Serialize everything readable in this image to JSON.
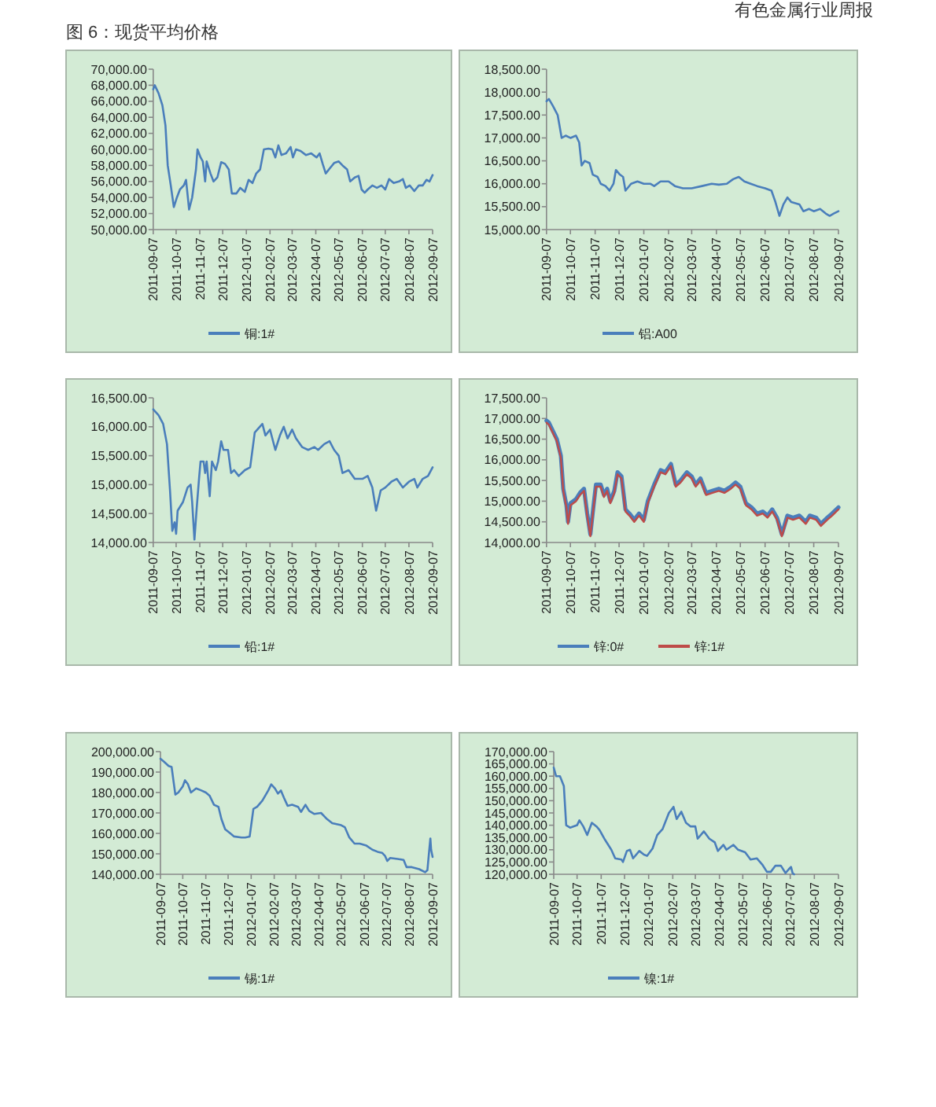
{
  "chart_data": [
    {
      "type": "line",
      "title": "图 6：现货平均价格",
      "annotations": [
        "有色金属行业周报"
      ],
      "legend": "bottom",
      "grid": false,
      "ylim": [
        50000,
        70000
      ],
      "yticks": [
        {
          "value": 50000,
          "label": "50,000.00"
        },
        {
          "value": 52000,
          "label": "52,000.00"
        },
        {
          "value": 54000,
          "label": "54,000.00"
        },
        {
          "value": 56000,
          "label": "56,000.00"
        },
        {
          "value": 58000,
          "label": "58,000.00"
        },
        {
          "value": 60000,
          "label": "60,000.00"
        },
        {
          "value": 62000,
          "label": "62,000.00"
        },
        {
          "value": 64000,
          "label": "64,000.00"
        },
        {
          "value": 66000,
          "label": "66,000.00"
        },
        {
          "value": 68000,
          "label": "68,000.00"
        },
        {
          "value": 70000,
          "label": "70,000.00"
        }
      ],
      "xlim": [
        "2011-09-07",
        "2012-09-07"
      ],
      "xticks": [
        "2011-09-07",
        "2011-10-07",
        "2011-11-07",
        "2011-12-07",
        "2012-01-07",
        "2012-02-07",
        "2012-03-07",
        "2012-04-07",
        "2012-05-07",
        "2012-06-07",
        "2012-07-07",
        "2012-08-07",
        "2012-09-07"
      ],
      "x": [
        "2011-09-07",
        "2011-09-09",
        "2011-09-14",
        "2011-09-19",
        "2011-09-23",
        "2011-09-26",
        "2011-09-30",
        "2011-10-04",
        "2011-10-08",
        "2011-10-12",
        "2011-10-17",
        "2011-10-20",
        "2011-10-24",
        "2011-10-28",
        "2011-11-02",
        "2011-11-04",
        "2011-11-08",
        "2011-11-11",
        "2011-11-14",
        "2011-11-16",
        "2011-11-21",
        "2011-11-25",
        "2011-11-30",
        "2011-12-05",
        "2011-12-10",
        "2011-12-15",
        "2011-12-19",
        "2011-12-25",
        "2011-12-30",
        "2012-01-05",
        "2012-01-10",
        "2012-01-15",
        "2012-01-20",
        "2012-01-25",
        "2012-01-30",
        "2012-02-05",
        "2012-02-10",
        "2012-02-14",
        "2012-02-18",
        "2012-02-22",
        "2012-02-28",
        "2012-03-05",
        "2012-03-08",
        "2012-03-12",
        "2012-03-18",
        "2012-03-25",
        "2012-04-01",
        "2012-04-08",
        "2012-04-12",
        "2012-04-16",
        "2012-04-20",
        "2012-04-25",
        "2012-05-01",
        "2012-05-07",
        "2012-05-12",
        "2012-05-18",
        "2012-05-22",
        "2012-05-28",
        "2012-06-02",
        "2012-06-06",
        "2012-06-10",
        "2012-06-14",
        "2012-06-20",
        "2012-06-26",
        "2012-07-02",
        "2012-07-07",
        "2012-07-12",
        "2012-07-18",
        "2012-07-25",
        "2012-07-30",
        "2012-08-03",
        "2012-08-08",
        "2012-08-14",
        "2012-08-20",
        "2012-08-25",
        "2012-08-30",
        "2012-09-03",
        "2012-09-07"
      ],
      "series": [
        {
          "name": "铜:1#",
          "color": "#4a7ebb",
          "values": [
            67500,
            68000,
            67000,
            65500,
            63000,
            58000,
            55500,
            52800,
            54000,
            55000,
            55500,
            56200,
            52500,
            54000,
            57500,
            60000,
            59000,
            58500,
            56000,
            58500,
            57000,
            56000,
            56500,
            58400,
            58200,
            57500,
            54500,
            54500,
            55200,
            54700,
            56200,
            55800,
            57000,
            57500,
            60000,
            60100,
            60000,
            59000,
            60500,
            59300,
            59500,
            60300,
            59000,
            60000,
            59800,
            59300,
            59500,
            59000,
            59500,
            58200,
            57000,
            57600,
            58300,
            58500,
            58000,
            57500,
            56000,
            56500,
            56700,
            55000,
            54600,
            55000,
            55500,
            55200,
            55500,
            55000,
            56300,
            55800,
            56000,
            56300,
            55200,
            55500,
            54800,
            55500,
            55500,
            56200,
            56000,
            56800
          ]
        }
      ]
    },
    {
      "type": "line",
      "legend": "bottom",
      "grid": false,
      "ylim": [
        15000,
        18500
      ],
      "yticks": [
        {
          "value": 15000,
          "label": "15,000.00"
        },
        {
          "value": 15500,
          "label": "15,500.00"
        },
        {
          "value": 16000,
          "label": "16,000.00"
        },
        {
          "value": 16500,
          "label": "16,500.00"
        },
        {
          "value": 17000,
          "label": "17,000.00"
        },
        {
          "value": 17500,
          "label": "17,500.00"
        },
        {
          "value": 18000,
          "label": "18,000.00"
        },
        {
          "value": 18500,
          "label": "18,500.00"
        }
      ],
      "xlim": [
        "2011-09-07",
        "2012-09-07"
      ],
      "xticks": [
        "2011-09-07",
        "2011-10-07",
        "2011-11-07",
        "2011-12-07",
        "2012-01-07",
        "2012-02-07",
        "2012-03-07",
        "2012-04-07",
        "2012-05-07",
        "2012-06-07",
        "2012-07-07",
        "2012-08-07",
        "2012-09-07"
      ],
      "x": [
        "2011-09-07",
        "2011-09-10",
        "2011-09-15",
        "2011-09-21",
        "2011-09-26",
        "2011-10-01",
        "2011-10-07",
        "2011-10-14",
        "2011-10-18",
        "2011-10-21",
        "2011-10-25",
        "2011-10-31",
        "2011-11-04",
        "2011-11-10",
        "2011-11-14",
        "2011-11-20",
        "2011-11-25",
        "2011-11-30",
        "2011-12-03",
        "2011-12-08",
        "2011-12-12",
        "2011-12-15",
        "2011-12-22",
        "2011-12-30",
        "2012-01-07",
        "2012-01-15",
        "2012-01-20",
        "2012-01-28",
        "2012-02-07",
        "2012-02-15",
        "2012-02-25",
        "2012-03-07",
        "2012-03-20",
        "2012-04-01",
        "2012-04-10",
        "2012-04-20",
        "2012-04-28",
        "2012-05-05",
        "2012-05-12",
        "2012-05-20",
        "2012-05-28",
        "2012-06-07",
        "2012-06-15",
        "2012-06-20",
        "2012-06-25",
        "2012-06-30",
        "2012-07-05",
        "2012-07-10",
        "2012-07-20",
        "2012-07-25",
        "2012-08-01",
        "2012-08-07",
        "2012-08-15",
        "2012-08-22",
        "2012-08-27",
        "2012-09-01",
        "2012-09-07"
      ],
      "series": [
        {
          "name": "铝:A00",
          "color": "#4a7ebb",
          "values": [
            17800,
            17850,
            17700,
            17500,
            17000,
            17050,
            17000,
            17050,
            16900,
            16400,
            16500,
            16450,
            16200,
            16150,
            16000,
            15950,
            15850,
            16000,
            16300,
            16200,
            16150,
            15850,
            16000,
            16050,
            16000,
            16000,
            15950,
            16050,
            16050,
            15950,
            15900,
            15900,
            15950,
            16000,
            15980,
            16000,
            16100,
            16150,
            16050,
            16000,
            15950,
            15900,
            15850,
            15600,
            15300,
            15550,
            15700,
            15600,
            15550,
            15400,
            15450,
            15400,
            15450,
            15350,
            15300,
            15350,
            15400
          ]
        }
      ]
    },
    {
      "type": "line",
      "legend": "bottom",
      "grid": false,
      "ylim": [
        14000,
        16500
      ],
      "yticks": [
        {
          "value": 14000,
          "label": "14,000.00"
        },
        {
          "value": 14500,
          "label": "14,500.00"
        },
        {
          "value": 15000,
          "label": "15,000.00"
        },
        {
          "value": 15500,
          "label": "15,500.00"
        },
        {
          "value": 16000,
          "label": "16,000.00"
        },
        {
          "value": 16500,
          "label": "16,500.00"
        }
      ],
      "xlim": [
        "2011-09-07",
        "2012-09-07"
      ],
      "xticks": [
        "2011-09-07",
        "2011-10-07",
        "2011-11-07",
        "2011-12-07",
        "2012-01-07",
        "2012-02-07",
        "2012-03-07",
        "2012-04-07",
        "2012-05-07",
        "2012-06-07",
        "2012-07-07",
        "2012-08-07",
        "2012-09-07"
      ],
      "x": [
        "2011-09-07",
        "2011-09-14",
        "2011-09-20",
        "2011-09-25",
        "2011-09-29",
        "2011-10-02",
        "2011-10-05",
        "2011-10-07",
        "2011-10-09",
        "2011-10-16",
        "2011-10-22",
        "2011-10-26",
        "2011-10-28",
        "2011-10-31",
        "2011-11-03",
        "2011-11-06",
        "2011-11-08",
        "2011-11-12",
        "2011-11-14",
        "2011-11-16",
        "2011-11-20",
        "2011-11-23",
        "2011-11-28",
        "2011-12-01",
        "2011-12-05",
        "2011-12-08",
        "2011-12-14",
        "2011-12-18",
        "2011-12-22",
        "2011-12-28",
        "2012-01-05",
        "2012-01-12",
        "2012-01-18",
        "2012-01-28",
        "2012-02-01",
        "2012-02-07",
        "2012-02-14",
        "2012-02-20",
        "2012-02-25",
        "2012-03-01",
        "2012-03-07",
        "2012-03-12",
        "2012-03-20",
        "2012-03-28",
        "2012-04-05",
        "2012-04-10",
        "2012-04-18",
        "2012-04-25",
        "2012-05-01",
        "2012-05-07",
        "2012-05-12",
        "2012-05-20",
        "2012-05-28",
        "2012-06-07",
        "2012-06-14",
        "2012-06-20",
        "2012-06-25",
        "2012-07-01",
        "2012-07-07",
        "2012-07-15",
        "2012-07-22",
        "2012-07-30",
        "2012-08-07",
        "2012-08-14",
        "2012-08-18",
        "2012-08-25",
        "2012-09-01",
        "2012-09-07"
      ],
      "series": [
        {
          "name": "铅:1#",
          "color": "#4a7ebb",
          "values": [
            16300,
            16200,
            16050,
            15700,
            14900,
            14200,
            14350,
            14150,
            14550,
            14700,
            14950,
            15000,
            14700,
            14050,
            14600,
            15100,
            15400,
            15400,
            15200,
            15400,
            14800,
            15400,
            15250,
            15400,
            15750,
            15600,
            15600,
            15200,
            15250,
            15150,
            15250,
            15300,
            15900,
            16050,
            15850,
            15950,
            15600,
            15850,
            16000,
            15800,
            15950,
            15800,
            15650,
            15600,
            15650,
            15600,
            15700,
            15750,
            15600,
            15500,
            15200,
            15250,
            15100,
            15100,
            15150,
            14950,
            14550,
            14900,
            14950,
            15050,
            15100,
            14950,
            15050,
            15100,
            14950,
            15100,
            15150,
            15300
          ]
        }
      ]
    },
    {
      "type": "line",
      "legend": "bottom",
      "grid": false,
      "ylim": [
        14000,
        17500
      ],
      "yticks": [
        {
          "value": 14000,
          "label": "14,000.00"
        },
        {
          "value": 14500,
          "label": "14,500.00"
        },
        {
          "value": 15000,
          "label": "15,000.00"
        },
        {
          "value": 15500,
          "label": "15,500.00"
        },
        {
          "value": 16000,
          "label": "16,000.00"
        },
        {
          "value": 16500,
          "label": "16,500.00"
        },
        {
          "value": 17000,
          "label": "17,000.00"
        },
        {
          "value": 17500,
          "label": "17,500.00"
        }
      ],
      "xlim": [
        "2011-09-07",
        "2012-09-07"
      ],
      "xticks": [
        "2011-09-07",
        "2011-10-07",
        "2011-11-07",
        "2011-12-07",
        "2012-01-07",
        "2012-02-07",
        "2012-03-07",
        "2012-04-07",
        "2012-05-07",
        "2012-06-07",
        "2012-07-07",
        "2012-08-07",
        "2012-09-07"
      ],
      "x": [
        "2011-09-07",
        "2011-09-10",
        "2011-09-15",
        "2011-09-20",
        "2011-09-25",
        "2011-09-28",
        "2011-10-02",
        "2011-10-04",
        "2011-10-07",
        "2011-10-14",
        "2011-10-19",
        "2011-10-24",
        "2011-10-28",
        "2011-11-01",
        "2011-11-05",
        "2011-11-08",
        "2011-11-14",
        "2011-11-18",
        "2011-11-22",
        "2011-11-26",
        "2011-12-01",
        "2011-12-05",
        "2011-12-10",
        "2011-12-15",
        "2011-12-20",
        "2011-12-26",
        "2012-01-01",
        "2012-01-07",
        "2012-01-12",
        "2012-01-20",
        "2012-01-28",
        "2012-02-03",
        "2012-02-10",
        "2012-02-16",
        "2012-02-22",
        "2012-03-01",
        "2012-03-07",
        "2012-03-12",
        "2012-03-18",
        "2012-03-25",
        "2012-04-02",
        "2012-04-10",
        "2012-04-17",
        "2012-04-25",
        "2012-05-01",
        "2012-05-07",
        "2012-05-14",
        "2012-05-21",
        "2012-05-28",
        "2012-06-04",
        "2012-06-10",
        "2012-06-16",
        "2012-06-22",
        "2012-06-28",
        "2012-07-05",
        "2012-07-12",
        "2012-07-20",
        "2012-07-28",
        "2012-08-02",
        "2012-08-10",
        "2012-08-16",
        "2012-08-24",
        "2012-08-30",
        "2012-09-07"
      ],
      "series": [
        {
          "name": "锌:0#",
          "color": "#4a7ebb",
          "values": [
            16950,
            16900,
            16700,
            16500,
            16100,
            15300,
            14900,
            14500,
            14950,
            15050,
            15200,
            15300,
            14700,
            14200,
            14900,
            15400,
            15400,
            15150,
            15300,
            15000,
            15250,
            15700,
            15600,
            14800,
            14700,
            14550,
            14700,
            14550,
            15000,
            15400,
            15750,
            15700,
            15900,
            15400,
            15500,
            15700,
            15600,
            15400,
            15550,
            15200,
            15250,
            15300,
            15250,
            15350,
            15450,
            15350,
            14950,
            14850,
            14700,
            14750,
            14650,
            14800,
            14600,
            14200,
            14650,
            14600,
            14650,
            14500,
            14650,
            14600,
            14450,
            14600,
            14700,
            14850
          ]
        },
        {
          "name": "锌:1#",
          "color": "#be4b48",
          "values": [
            16900,
            16850,
            16650,
            16450,
            16050,
            15250,
            14850,
            14450,
            14900,
            15000,
            15150,
            15250,
            14650,
            14150,
            14850,
            15350,
            15350,
            15100,
            15250,
            14950,
            15200,
            15650,
            15550,
            14750,
            14650,
            14500,
            14650,
            14500,
            14950,
            15350,
            15700,
            15650,
            15850,
            15350,
            15450,
            15650,
            15550,
            15350,
            15500,
            15150,
            15200,
            15250,
            15200,
            15300,
            15400,
            15300,
            14900,
            14800,
            14650,
            14700,
            14600,
            14750,
            14550,
            14150,
            14600,
            14550,
            14600,
            14450,
            14600,
            14550,
            14400,
            14550,
            14650,
            14800
          ]
        }
      ]
    },
    {
      "type": "line",
      "legend": "bottom",
      "grid": false,
      "ylim": [
        140000,
        200000
      ],
      "yticks": [
        {
          "value": 140000,
          "label": "140,000.00"
        },
        {
          "value": 150000,
          "label": "150,000.00"
        },
        {
          "value": 160000,
          "label": "160,000.00"
        },
        {
          "value": 170000,
          "label": "170,000.00"
        },
        {
          "value": 180000,
          "label": "180,000.00"
        },
        {
          "value": 190000,
          "label": "190,000.00"
        },
        {
          "value": 200000,
          "label": "200,000.00"
        }
      ],
      "xlim": [
        "2011-09-07",
        "2012-09-07"
      ],
      "xticks": [
        "2011-09-07",
        "2011-10-07",
        "2011-11-07",
        "2011-12-07",
        "2012-01-07",
        "2012-02-07",
        "2012-03-07",
        "2012-04-07",
        "2012-05-07",
        "2012-06-07",
        "2012-07-07",
        "2012-08-07",
        "2012-09-07"
      ],
      "x": [
        "2011-09-07",
        "2011-09-12",
        "2011-09-18",
        "2011-09-22",
        "2011-09-27",
        "2011-10-01",
        "2011-10-07",
        "2011-10-10",
        "2011-10-14",
        "2011-10-18",
        "2011-10-25",
        "2011-11-01",
        "2011-11-07",
        "2011-11-12",
        "2011-11-18",
        "2011-11-24",
        "2011-11-28",
        "2011-12-03",
        "2011-12-10",
        "2011-12-15",
        "2011-12-25",
        "2011-12-30",
        "2012-01-05",
        "2012-01-10",
        "2012-01-15",
        "2012-01-22",
        "2012-01-30",
        "2012-02-03",
        "2012-02-08",
        "2012-02-12",
        "2012-02-16",
        "2012-02-20",
        "2012-02-25",
        "2012-03-02",
        "2012-03-10",
        "2012-03-14",
        "2012-03-20",
        "2012-03-25",
        "2012-04-01",
        "2012-04-10",
        "2012-04-18",
        "2012-04-25",
        "2012-05-01",
        "2012-05-07",
        "2012-05-12",
        "2012-05-18",
        "2012-05-25",
        "2012-06-01",
        "2012-06-10",
        "2012-06-18",
        "2012-06-25",
        "2012-07-01",
        "2012-07-05",
        "2012-07-08",
        "2012-07-12",
        "2012-07-22",
        "2012-07-30",
        "2012-08-03",
        "2012-08-10",
        "2012-08-20",
        "2012-08-28",
        "2012-08-31",
        "2012-09-02",
        "2012-09-04",
        "2012-09-05",
        "2012-09-07"
      ],
      "series": [
        {
          "name": "锡:1#",
          "color": "#4a7ebb",
          "values": [
            196500,
            195000,
            193000,
            192500,
            179000,
            180000,
            183000,
            186000,
            184000,
            180000,
            182000,
            181000,
            180000,
            178500,
            174000,
            173000,
            167000,
            162000,
            160000,
            158500,
            158000,
            158000,
            158500,
            172000,
            173000,
            176000,
            181000,
            184000,
            182000,
            179500,
            181000,
            177500,
            173500,
            174000,
            173000,
            170500,
            174000,
            171000,
            169500,
            170000,
            167000,
            165000,
            164500,
            164000,
            163000,
            158000,
            155000,
            155000,
            154000,
            152000,
            151000,
            150500,
            149000,
            146500,
            148000,
            147500,
            147000,
            143500,
            143500,
            142500,
            141000,
            142000,
            150000,
            157500,
            152000,
            148500
          ]
        }
      ]
    },
    {
      "type": "line",
      "legend": "bottom",
      "grid": false,
      "ylim": [
        120000,
        170000
      ],
      "yticks": [
        {
          "value": 120000,
          "label": "120,000.00"
        },
        {
          "value": 125000,
          "label": "125,000.00"
        },
        {
          "value": 130000,
          "label": "130,000.00"
        },
        {
          "value": 135000,
          "label": "135,000.00"
        },
        {
          "value": 140000,
          "label": "140,000.00"
        },
        {
          "value": 145000,
          "label": "145,000.00"
        },
        {
          "value": 150000,
          "label": "150,000.00"
        },
        {
          "value": 155000,
          "label": "155,000.00"
        },
        {
          "value": 160000,
          "label": "160,000.00"
        },
        {
          "value": 165000,
          "label": "165,000.00"
        },
        {
          "value": 170000,
          "label": "170,000.00"
        }
      ],
      "xlim": [
        "2011-09-07",
        "2012-09-07"
      ],
      "xticks": [
        "2011-09-07",
        "2011-10-07",
        "2011-11-07",
        "2011-12-07",
        "2012-01-07",
        "2012-02-07",
        "2012-03-07",
        "2012-04-07",
        "2012-05-07",
        "2012-06-07",
        "2012-07-07",
        "2012-08-07",
        "2012-09-07"
      ],
      "x": [
        "2011-09-07",
        "2011-09-10",
        "2011-09-15",
        "2011-09-20",
        "2011-09-23",
        "2011-09-28",
        "2011-10-07",
        "2011-10-10",
        "2011-10-15",
        "2011-10-20",
        "2011-10-26",
        "2011-11-01",
        "2011-11-05",
        "2011-11-12",
        "2011-11-20",
        "2011-11-25",
        "2011-12-03",
        "2011-12-05",
        "2011-12-10",
        "2011-12-14",
        "2011-12-18",
        "2011-12-26",
        "2012-01-01",
        "2012-01-05",
        "2012-01-12",
        "2012-01-18",
        "2012-01-25",
        "2012-02-02",
        "2012-02-08",
        "2012-02-12",
        "2012-02-18",
        "2012-02-24",
        "2012-03-01",
        "2012-03-07",
        "2012-03-10",
        "2012-03-18",
        "2012-03-25",
        "2012-04-01",
        "2012-04-05",
        "2012-04-12",
        "2012-04-16",
        "2012-04-25",
        "2012-05-01",
        "2012-05-10",
        "2012-05-17",
        "2012-05-25",
        "2012-06-01",
        "2012-06-07",
        "2012-06-12",
        "2012-06-18",
        "2012-06-25",
        "2012-07-01",
        "2012-07-05",
        "2012-07-08",
        "2012-07-10",
        "2012-07-12"
      ],
      "series": [
        {
          "name": "镍:1#",
          "color": "#4a7ebb",
          "values": [
            163500,
            160000,
            160000,
            156000,
            140000,
            139000,
            140000,
            142000,
            139500,
            136000,
            141000,
            139500,
            138000,
            134000,
            130000,
            126500,
            126000,
            125000,
            129500,
            130000,
            126500,
            129500,
            128000,
            127500,
            130500,
            136000,
            138500,
            145000,
            147500,
            142500,
            145500,
            141000,
            139500,
            139500,
            134500,
            137500,
            134500,
            133000,
            129500,
            132000,
            130000,
            132000,
            130000,
            129000,
            126000,
            126500,
            124000,
            121000,
            121000,
            123500,
            123500,
            120500,
            122000,
            123000,
            120500,
            120000
          ]
        }
      ]
    }
  ]
}
